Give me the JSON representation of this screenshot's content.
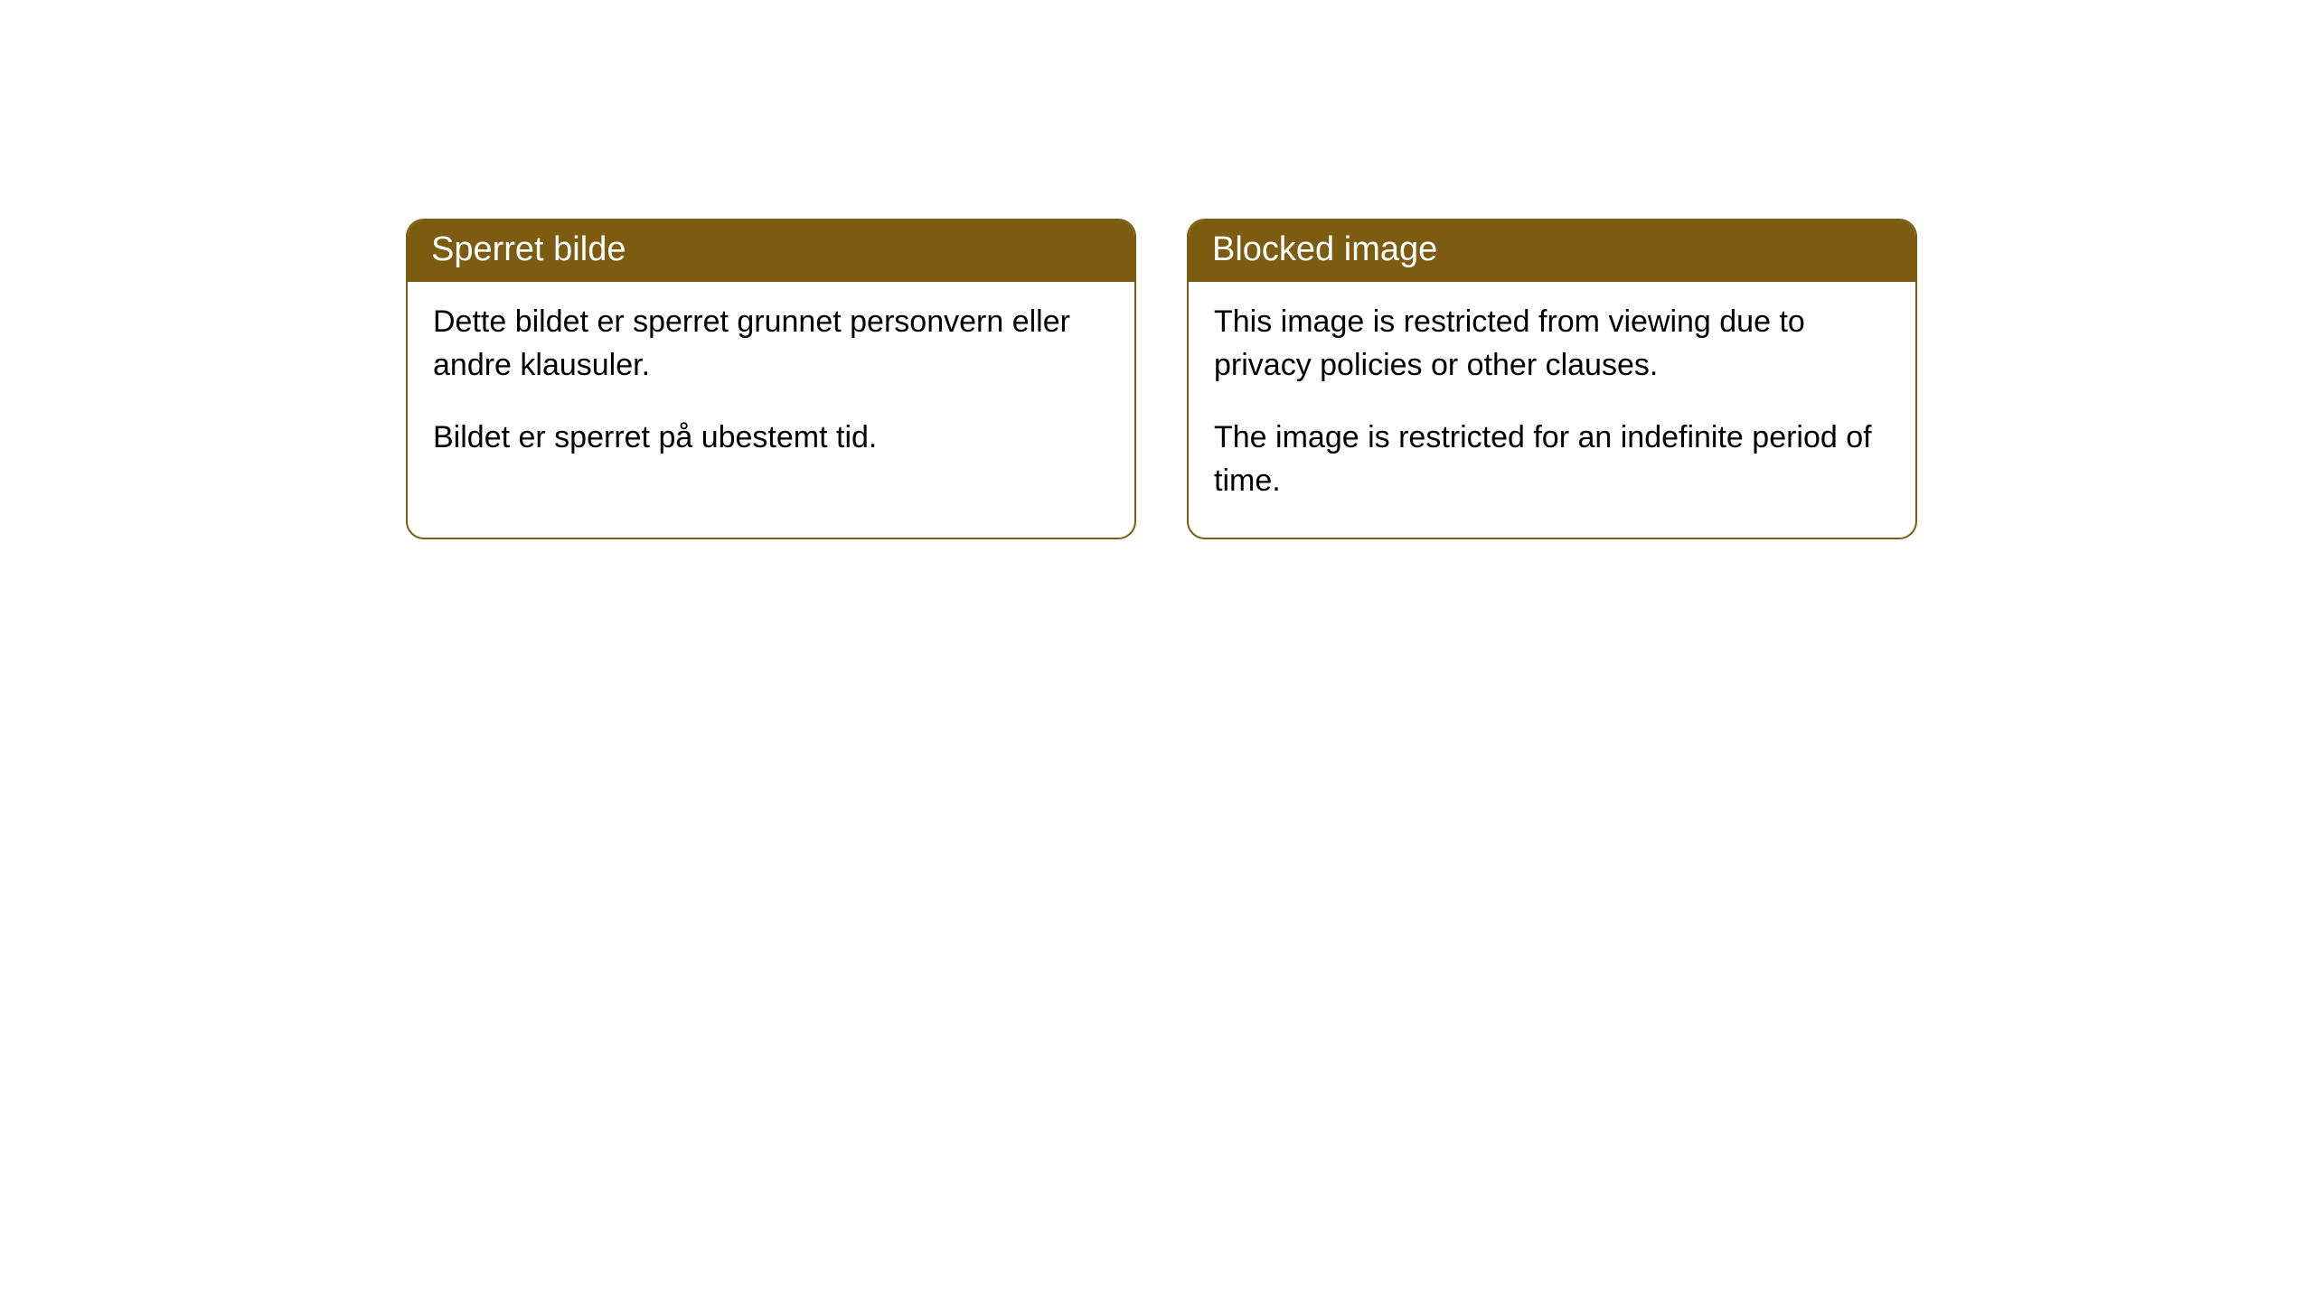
{
  "cards": [
    {
      "title": "Sperret bilde",
      "paragraph1": "Dette bildet er sperret grunnet personvern eller andre klausuler.",
      "paragraph2": "Bildet er sperret på ubestemt tid."
    },
    {
      "title": "Blocked image",
      "paragraph1": "This image is restricted from viewing due to privacy policies or other clauses.",
      "paragraph2": "The image is restricted for an indefinite period of time."
    }
  ],
  "styling": {
    "header_background": "#7b5c10",
    "header_text_color": "#ffffff",
    "body_text_color": "#000000",
    "card_border_color": "#7b5c10",
    "card_background": "#ffffff",
    "page_background": "#ffffff",
    "header_fontsize": 38,
    "body_fontsize": 34,
    "border_radius": 20
  }
}
